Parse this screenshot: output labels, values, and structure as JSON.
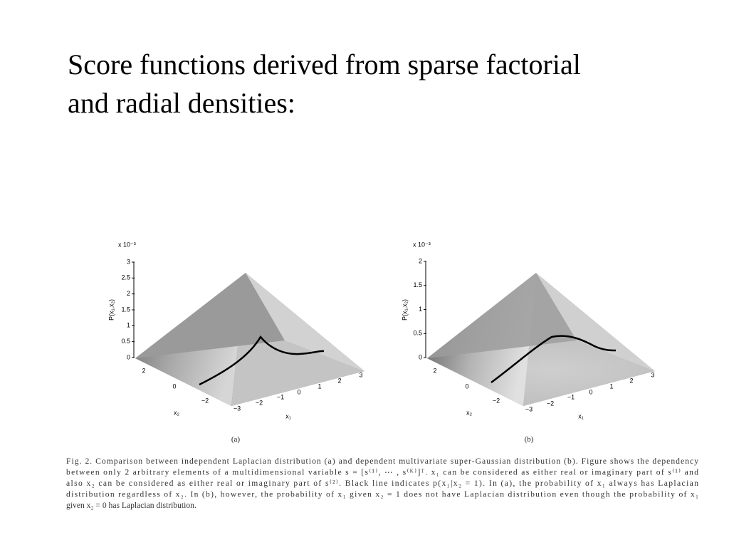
{
  "title": [
    "Score functions derived from sparse factorial",
    "and radial densities:"
  ],
  "figures": [
    {
      "exponent": "x 10⁻³",
      "z_label": "P(x₁,x₂)",
      "z_ticks": [
        "3",
        "2.5",
        "2",
        "1.5",
        "1",
        "0.5",
        "0"
      ],
      "x2_ticks": [
        "2",
        "0",
        "−2"
      ],
      "x2_label": "x₂",
      "x1_ticks": [
        "−3",
        "−2",
        "−1",
        "0",
        "1",
        "2",
        "3"
      ],
      "x1_label": "x₁",
      "sublabel": "(a)"
    },
    {
      "exponent": "x 10⁻³",
      "z_label": "P(x₁,x₂)",
      "z_ticks": [
        "2",
        "1.5",
        "1",
        "0.5",
        "0"
      ],
      "x2_ticks": [
        "2",
        "0",
        "−2"
      ],
      "x2_label": "x₂",
      "x1_ticks": [
        "−3",
        "−2",
        "−1",
        "0",
        "1",
        "2",
        "3"
      ],
      "x1_label": "x₁",
      "sublabel": "(b)"
    }
  ],
  "caption": [
    "Fig. 2.   Comparison between independent Laplacian distribution (a) and dependent multivariate super-Gaussian distribution (b). Figure shows the dependency",
    "between only 2 arbitrary elements of a multidimensional variable s = [s⁽¹⁾, ⋯ , s⁽ᴷ⁾]ᵀ. x₁ can be considered as either real or imaginary part of s⁽¹⁾ and",
    "also x₂ can be considered as either real or imaginary part of s⁽²⁾. Black line indicates p(x₁|x₂ = 1). In (a), the probability of x₁ always has Laplacian",
    "distribution regardless of x₂. In (b), however, the probability of x₁ given x₂ = 1 does not have Laplacian distribution even though the probability of x₁",
    "given x₂ = 0 has Laplacian distribution."
  ]
}
